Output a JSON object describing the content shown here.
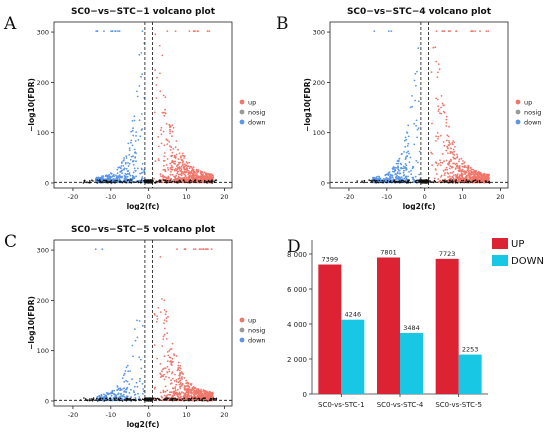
{
  "panels": {
    "a": {
      "letter": "A"
    },
    "b": {
      "letter": "B"
    },
    "c": {
      "letter": "C"
    },
    "d": {
      "letter": "D"
    }
  },
  "colors": {
    "up": "#f0766b",
    "nosig": "#111111",
    "down": "#5b96e8",
    "bar_up": "#dd2233",
    "bar_down": "#18c7e3"
  },
  "chart_data": [
    {
      "type": "scatter",
      "title": "SC0−vs−STC−1 volcano plot",
      "xlabel": "log2(fc)",
      "ylabel": "−log10(FDR)",
      "xlim": [
        -25,
        22
      ],
      "ylim": [
        -10,
        320
      ],
      "xticks": [
        -20,
        -10,
        0,
        10,
        20
      ],
      "yticks": [
        0,
        100,
        200,
        300
      ],
      "thresholds": {
        "log2fc": [
          -1,
          1
        ],
        "neglog10_fdr": 1.3
      },
      "legend": [
        "up",
        "nosig",
        "down"
      ],
      "legend_position": "right",
      "series": [
        {
          "name": "up",
          "points": 7399
        },
        {
          "name": "nosig"
        },
        {
          "name": "down",
          "points": 4246
        }
      ]
    },
    {
      "type": "scatter",
      "title": "SC0−vs−STC−4 volcano plot",
      "xlabel": "log2(fc)",
      "ylabel": "−log10(FDR)",
      "xlim": [
        -25,
        22
      ],
      "ylim": [
        -10,
        320
      ],
      "xticks": [
        -20,
        -10,
        0,
        10,
        20
      ],
      "yticks": [
        0,
        100,
        200,
        300
      ],
      "thresholds": {
        "log2fc": [
          -1,
          1
        ],
        "neglog10_fdr": 1.3
      },
      "legend": [
        "up",
        "nosig",
        "down"
      ],
      "legend_position": "right",
      "series": [
        {
          "name": "up",
          "points": 7801
        },
        {
          "name": "nosig"
        },
        {
          "name": "down",
          "points": 3484
        }
      ]
    },
    {
      "type": "scatter",
      "title": "SC0−vs−STC−5 volcano plot",
      "xlabel": "log2(fc)",
      "ylabel": "−log10(FDR)",
      "xlim": [
        -25,
        22
      ],
      "ylim": [
        -10,
        320
      ],
      "xticks": [
        -20,
        -10,
        0,
        10,
        20
      ],
      "yticks": [
        0,
        100,
        200,
        300
      ],
      "thresholds": {
        "log2fc": [
          -1,
          1
        ],
        "neglog10_fdr": 1.3
      },
      "legend": [
        "up",
        "nosig",
        "down"
      ],
      "legend_position": "right",
      "series": [
        {
          "name": "up",
          "points": 7723
        },
        {
          "name": "nosig"
        },
        {
          "name": "down",
          "points": 2253
        }
      ]
    },
    {
      "type": "bar",
      "categories": [
        "SC0-vs-STC-1",
        "SC0-vs-STC-4",
        "SC0-vs-STC-5"
      ],
      "series": [
        {
          "name": "UP",
          "values": [
            7399,
            7801,
            7723
          ]
        },
        {
          "name": "DOWN",
          "values": [
            4246,
            3484,
            2253
          ]
        }
      ],
      "yticks": [
        0,
        2000,
        4000,
        6000,
        8000
      ],
      "ytick_labels": [
        "0",
        "2 000",
        "4 000",
        "6 000",
        "8 000"
      ],
      "ylim": [
        0,
        8800
      ],
      "legend_position": "top-right"
    }
  ]
}
